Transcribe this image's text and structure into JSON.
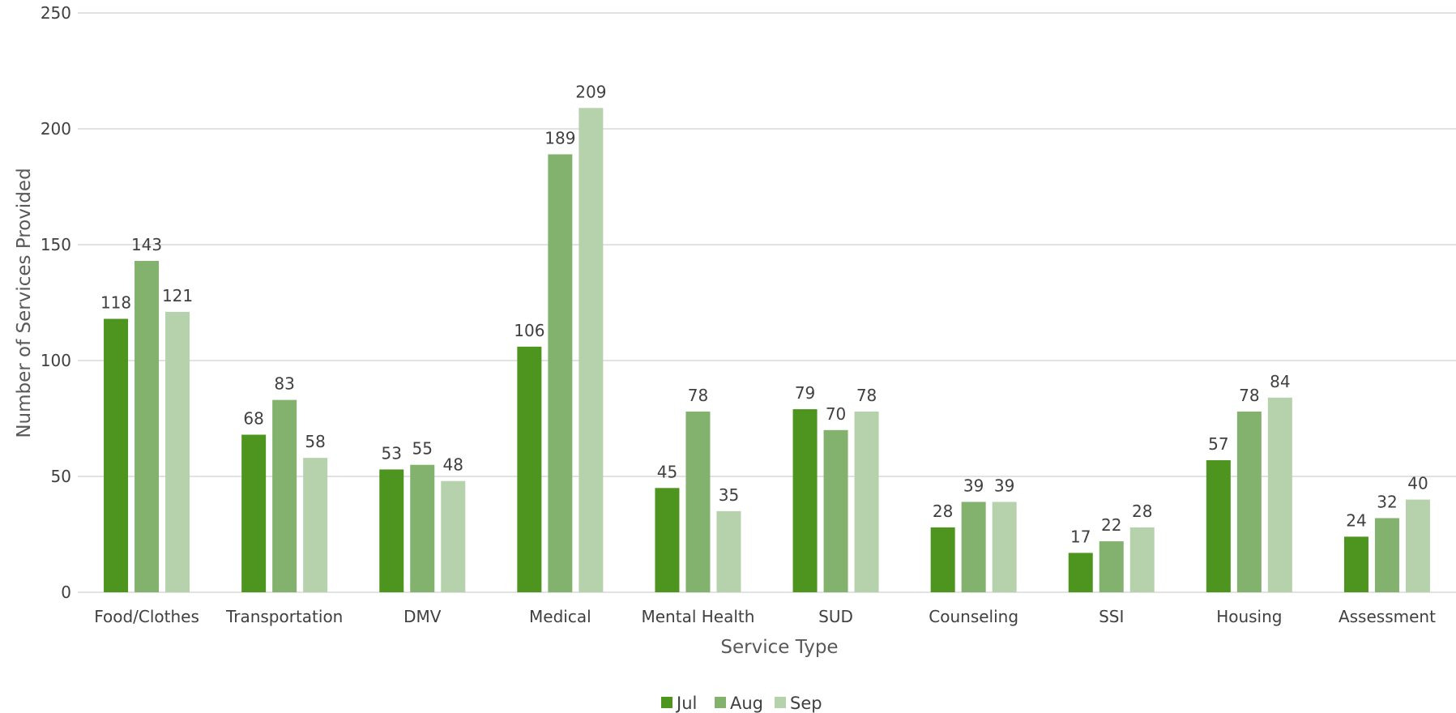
{
  "chart_data": {
    "type": "bar",
    "title": "",
    "xlabel": "Service Type",
    "ylabel": "Number of Services Provided",
    "ylim": [
      0,
      250
    ],
    "yticks": [
      0,
      50,
      100,
      150,
      200,
      250
    ],
    "grid": true,
    "legend_position": "bottom",
    "categories": [
      "Food/Clothes",
      "Transportation",
      "DMV",
      "Medical",
      "Mental Health",
      "SUD",
      "Counseling",
      "SSI",
      "Housing",
      "Assessment"
    ],
    "series": [
      {
        "name": "Jul",
        "color": "#4e951f",
        "values": [
          118,
          68,
          53,
          106,
          45,
          79,
          28,
          17,
          57,
          24
        ]
      },
      {
        "name": "Aug",
        "color": "#82b26d",
        "values": [
          143,
          83,
          55,
          189,
          78,
          70,
          39,
          22,
          78,
          32
        ]
      },
      {
        "name": "Sep",
        "color": "#b6d2ad",
        "values": [
          121,
          58,
          48,
          209,
          35,
          78,
          39,
          28,
          84,
          40
        ]
      }
    ]
  },
  "colors": {
    "grid": "#d9d9d9",
    "text": "#404040",
    "axis_title": "#595959"
  }
}
